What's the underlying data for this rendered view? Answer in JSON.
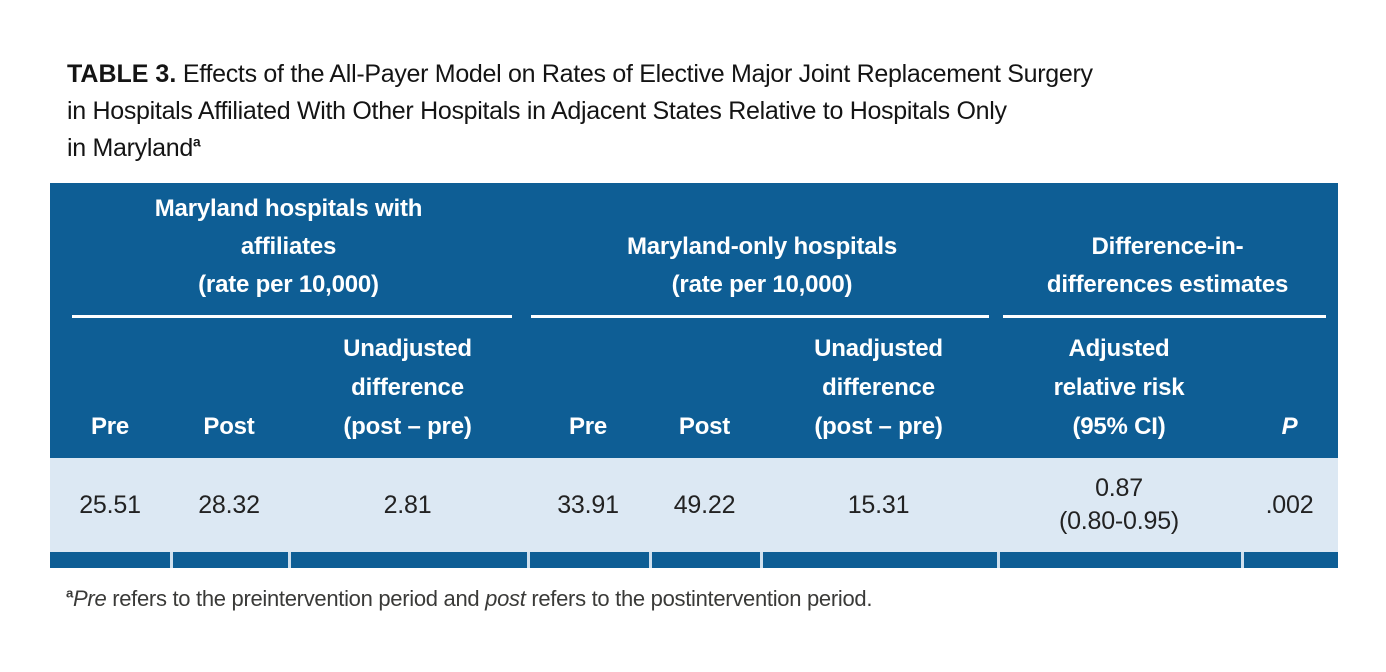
{
  "title": {
    "label": "TABLE 3.",
    "line1": " Effects of the All-Payer Model on Rates of Elective Major Joint Replacement Surgery",
    "line2": "in Hospitals Affiliated With Other Hospitals in Adjacent States Relative to Hospitals Only",
    "line3": "in Maryland",
    "footnote_marker": "a"
  },
  "colors": {
    "header_blue": "#0e5e95",
    "data_row_light_blue": "#dce8f3",
    "spanner_rule_white": "#ffffff",
    "strip_separator": "#cfe0ee",
    "title_text": "#141414",
    "footnote_text": "#3a3a38"
  },
  "table": {
    "groups": [
      {
        "label": "Maryland hospitals with\naffiliates\n(rate per 10,000)"
      },
      {
        "label": "Maryland-only hospitals\n(rate per 10,000)"
      },
      {
        "label": "Difference-in-\ndifferences estimates"
      }
    ],
    "columns": [
      {
        "label": "Pre"
      },
      {
        "label": "Post"
      },
      {
        "label": "Unadjusted\ndifference\n(post – pre)"
      },
      {
        "label": "Pre"
      },
      {
        "label": "Post"
      },
      {
        "label": "Unadjusted\ndifference\n(post – pre)"
      },
      {
        "label": "Adjusted\nrelative risk\n(95% CI)"
      },
      {
        "label": "P"
      }
    ],
    "row": [
      "25.51",
      "28.32",
      "2.81",
      "33.91",
      "49.22",
      "15.31",
      "0.87\n(0.80-0.95)",
      ".002"
    ]
  },
  "footnote": {
    "marker": "a",
    "part1": "Pre",
    "part2": " refers to the preintervention period and ",
    "part3": "post",
    "part4": " refers to the postintervention period."
  }
}
